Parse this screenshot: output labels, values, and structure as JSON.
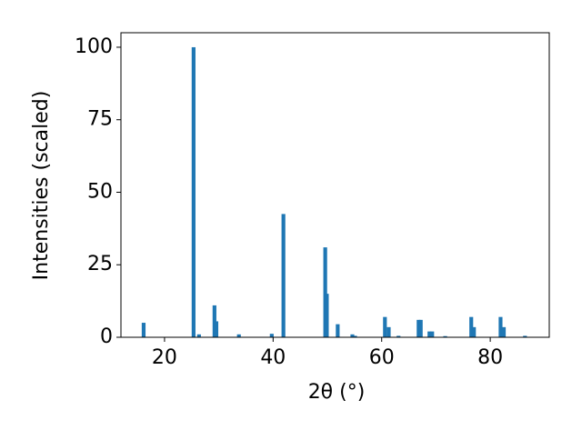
{
  "chart_data": {
    "type": "bar",
    "x": [
      16.15,
      25.35,
      26.35,
      29.2,
      29.55,
      33.7,
      39.75,
      41.9,
      49.6,
      49.9,
      51.9,
      54.6,
      55.1,
      60.6,
      61.3,
      63.1,
      66.8,
      67.2,
      68.8,
      69.3,
      71.7,
      76.5,
      77.0,
      81.9,
      82.5,
      86.4
    ],
    "values": [
      5,
      100,
      1,
      11,
      5.5,
      1,
      1.2,
      42.5,
      31,
      15,
      4.5,
      1,
      0.5,
      7,
      3.5,
      0.5,
      6,
      6,
      2,
      2,
      0.4,
      7,
      3.5,
      7,
      3.5,
      0.5
    ],
    "color": "#1f77b4",
    "xlabel": "2θ (°)",
    "ylabel": "Intensities (scaled)",
    "xlim": [
      11.97,
      90.87
    ],
    "xticks": [
      20,
      40,
      60,
      80
    ],
    "ylim": [
      0,
      105
    ],
    "yticks": [
      0,
      25,
      50,
      75,
      100
    ]
  }
}
